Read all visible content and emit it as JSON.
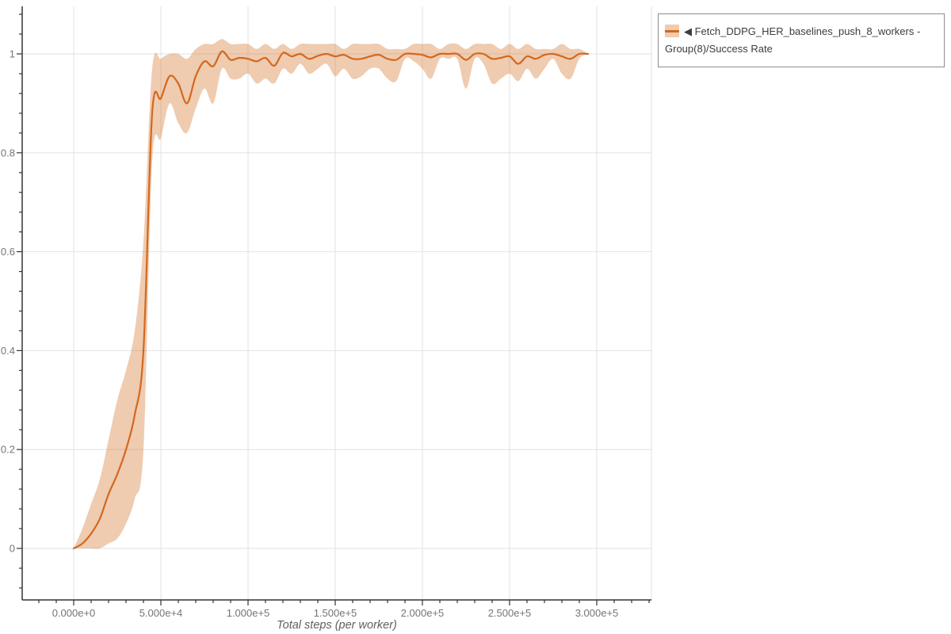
{
  "legend": {
    "items": [
      {
        "label": "◀ Fetch_DDPG_HER_baselines_push_8_workers - Group(8)/Success Rate"
      }
    ]
  },
  "colors": {
    "line": "#d2691e",
    "band": "rgba(210,105,30,0.35)",
    "grid": "#e2e2e2",
    "axis": "#333333",
    "tick_label": "#757575",
    "legend_border": "#8c8c8c"
  },
  "chart_data": {
    "type": "line",
    "title": "",
    "xlabel": "Total steps (per worker)",
    "ylabel": "",
    "xlim": [
      -29500,
      331400
    ],
    "ylim": [
      -0.104,
      1.096
    ],
    "grid": true,
    "legend_position": "outside-top-right",
    "x_ticks": [
      {
        "value": 0,
        "label": "0.000e+0"
      },
      {
        "value": 50000,
        "label": "5.000e+4"
      },
      {
        "value": 100000,
        "label": "1.000e+5"
      },
      {
        "value": 150000,
        "label": "1.500e+5"
      },
      {
        "value": 200000,
        "label": "2.000e+5"
      },
      {
        "value": 250000,
        "label": "2.500e+5"
      },
      {
        "value": 300000,
        "label": "3.000e+5"
      }
    ],
    "y_ticks": [
      {
        "value": 0,
        "label": "0"
      },
      {
        "value": 0.2,
        "label": "0.2"
      },
      {
        "value": 0.4,
        "label": "0.4"
      },
      {
        "value": 0.6,
        "label": "0.6"
      },
      {
        "value": 0.8,
        "label": "0.8"
      },
      {
        "value": 1,
        "label": "1"
      }
    ],
    "minor_tick_step_x": 10000,
    "minor_tick_step_y": 0.04,
    "series": [
      {
        "name": "Fetch_DDPG_HER_baselines_push_8_workers - Group(8)/Success Rate",
        "x": [
          0,
          5000,
          10000,
          15000,
          20000,
          25000,
          30000,
          35000,
          40000,
          45000,
          50000,
          55000,
          60000,
          65000,
          70000,
          75000,
          80000,
          85000,
          90000,
          95000,
          100000,
          105000,
          110000,
          115000,
          120000,
          125000,
          130000,
          135000,
          140000,
          145000,
          150000,
          155000,
          160000,
          165000,
          170000,
          175000,
          180000,
          185000,
          190000,
          195000,
          200000,
          205000,
          210000,
          215000,
          220000,
          225000,
          230000,
          235000,
          240000,
          245000,
          250000,
          255000,
          260000,
          265000,
          270000,
          275000,
          280000,
          285000,
          290000,
          295000
        ],
        "mean": [
          0,
          0.01,
          0.03,
          0.06,
          0.11,
          0.15,
          0.2,
          0.27,
          0.4,
          0.88,
          0.91,
          0.955,
          0.94,
          0.9,
          0.955,
          0.985,
          0.975,
          1.005,
          0.988,
          0.992,
          0.99,
          0.985,
          0.992,
          0.976,
          1.002,
          0.995,
          1.0,
          0.99,
          0.996,
          1.0,
          0.995,
          0.998,
          0.99,
          0.99,
          0.995,
          0.998,
          0.99,
          0.988,
          1.0,
          1.0,
          0.998,
          0.993,
          1.0,
          1.0,
          1.0,
          0.988,
          1.0,
          1.0,
          0.99,
          0.992,
          0.995,
          0.98,
          0.995,
          0.99,
          0.998,
          1.0,
          0.995,
          0.99,
          1.0,
          1.0
        ],
        "band_low": [
          0,
          0,
          0,
          0,
          0.01,
          0.02,
          0.05,
          0.1,
          0.2,
          0.78,
          0.83,
          0.9,
          0.86,
          0.84,
          0.89,
          0.93,
          0.9,
          0.97,
          0.95,
          0.95,
          0.96,
          0.94,
          0.95,
          0.94,
          0.97,
          0.96,
          0.98,
          0.96,
          0.97,
          0.98,
          0.955,
          0.97,
          0.95,
          0.955,
          0.97,
          0.97,
          0.95,
          0.945,
          0.99,
          0.985,
          0.97,
          0.95,
          0.99,
          0.99,
          0.99,
          0.93,
          0.99,
          0.98,
          0.94,
          0.95,
          0.96,
          0.945,
          0.97,
          0.95,
          0.97,
          0.99,
          0.96,
          0.95,
          0.99,
          1.0
        ],
        "band_high": [
          0,
          0.04,
          0.09,
          0.14,
          0.22,
          0.3,
          0.36,
          0.44,
          0.62,
          0.97,
          0.99,
          1.0,
          1.0,
          0.99,
          1.01,
          1.02,
          1.02,
          1.03,
          1.02,
          1.02,
          1.02,
          1.01,
          1.02,
          1.01,
          1.02,
          1.01,
          1.02,
          1.02,
          1.02,
          1.02,
          1.02,
          1.01,
          1.02,
          1.02,
          1.02,
          1.02,
          1.01,
          1.01,
          1.01,
          1.02,
          1.02,
          1.02,
          1.01,
          1.02,
          1.02,
          1.01,
          1.02,
          1.02,
          1.02,
          1.01,
          1.02,
          1.01,
          1.02,
          1.01,
          1.01,
          1.01,
          1.02,
          1.01,
          1.01,
          1.0
        ]
      }
    ]
  }
}
